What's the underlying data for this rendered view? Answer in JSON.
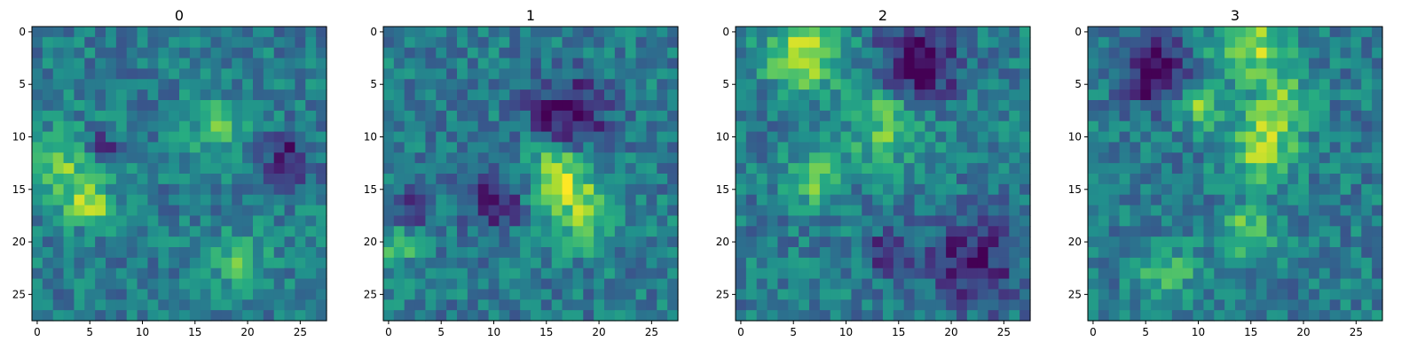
{
  "figure": {
    "panel_count": 4
  },
  "chart_data": [
    {
      "type": "heatmap",
      "title": "0",
      "colormap": "viridis",
      "grid": false,
      "rows": 28,
      "cols": 28,
      "seed": 11,
      "xticks": [
        0,
        5,
        10,
        15,
        20,
        25
      ],
      "yticks": [
        0,
        5,
        10,
        15,
        20,
        25
      ],
      "xticklabels": [
        "0",
        "5",
        "10",
        "15",
        "20",
        "25"
      ],
      "yticklabels": [
        "0",
        "5",
        "10",
        "15",
        "20",
        "25"
      ],
      "xlim": [
        -0.5,
        27.5
      ],
      "ylim": [
        27.5,
        -0.5
      ],
      "hotspots": [
        {
          "row": 13,
          "col": 3,
          "radius": 2.5,
          "amp": 0.35
        },
        {
          "row": 17,
          "col": 5,
          "radius": 1.2,
          "amp": 0.45
        },
        {
          "row": 9,
          "col": 17,
          "radius": 2.0,
          "amp": 0.25
        },
        {
          "row": 22,
          "col": 19,
          "radius": 2.0,
          "amp": 0.25
        },
        {
          "row": 12,
          "col": 24,
          "radius": 1.5,
          "amp": -0.35
        },
        {
          "row": 11,
          "col": 6,
          "radius": 1.2,
          "amp": -0.35
        }
      ]
    },
    {
      "type": "heatmap",
      "title": "1",
      "colormap": "viridis",
      "grid": false,
      "rows": 28,
      "cols": 28,
      "seed": 23,
      "xticks": [
        0,
        5,
        10,
        15,
        20,
        25
      ],
      "yticks": [
        0,
        5,
        10,
        15,
        20,
        25
      ],
      "xticklabels": [
        "0",
        "5",
        "10",
        "15",
        "20",
        "25"
      ],
      "yticklabels": [
        "0",
        "5",
        "10",
        "15",
        "20",
        "25"
      ],
      "xlim": [
        -0.5,
        27.5
      ],
      "ylim": [
        27.5,
        -0.5
      ],
      "hotspots": [
        {
          "row": 13,
          "col": 16,
          "radius": 2.0,
          "amp": 0.45
        },
        {
          "row": 17,
          "col": 18,
          "radius": 2.5,
          "amp": 0.35
        },
        {
          "row": 8,
          "col": 17,
          "radius": 2.5,
          "amp": -0.45
        },
        {
          "row": 16,
          "col": 10,
          "radius": 2.0,
          "amp": -0.35
        },
        {
          "row": 17,
          "col": 2,
          "radius": 1.2,
          "amp": -0.35
        },
        {
          "row": 20,
          "col": 1,
          "radius": 1.5,
          "amp": 0.3
        }
      ]
    },
    {
      "type": "heatmap",
      "title": "2",
      "colormap": "viridis",
      "grid": false,
      "rows": 28,
      "cols": 28,
      "seed": 37,
      "xticks": [
        0,
        5,
        10,
        15,
        20,
        25
      ],
      "yticks": [
        0,
        5,
        10,
        15,
        20,
        25
      ],
      "xticklabels": [
        "0",
        "5",
        "10",
        "15",
        "20",
        "25"
      ],
      "yticklabels": [
        "0",
        "5",
        "10",
        "15",
        "20",
        "25"
      ],
      "xlim": [
        -0.5,
        27.5
      ],
      "ylim": [
        27.5,
        -0.5
      ],
      "hotspots": [
        {
          "row": 2,
          "col": 6,
          "radius": 2.5,
          "amp": 0.5
        },
        {
          "row": 9,
          "col": 14,
          "radius": 2.5,
          "amp": 0.35
        },
        {
          "row": 14,
          "col": 7,
          "radius": 1.8,
          "amp": 0.35
        },
        {
          "row": 3,
          "col": 17,
          "radius": 2.5,
          "amp": -0.5
        },
        {
          "row": 22,
          "col": 22,
          "radius": 3.0,
          "amp": -0.35
        },
        {
          "row": 21,
          "col": 14,
          "radius": 1.5,
          "amp": -0.3
        }
      ]
    },
    {
      "type": "heatmap",
      "title": "3",
      "colormap": "viridis",
      "grid": false,
      "rows": 28,
      "cols": 28,
      "seed": 53,
      "xticks": [
        0,
        5,
        10,
        15,
        20,
        25
      ],
      "yticks": [
        0,
        5,
        10,
        15,
        20,
        25
      ],
      "xticklabels": [
        "0",
        "5",
        "10",
        "15",
        "20",
        "25"
      ],
      "yticklabels": [
        "0",
        "5",
        "10",
        "15",
        "20",
        "25"
      ],
      "xlim": [
        -0.5,
        27.5
      ],
      "ylim": [
        27.5,
        -0.5
      ],
      "hotspots": [
        {
          "row": 1,
          "col": 15,
          "radius": 2.5,
          "amp": 0.45
        },
        {
          "row": 11,
          "col": 16,
          "radius": 2.2,
          "amp": 0.45
        },
        {
          "row": 7,
          "col": 18,
          "radius": 1.8,
          "amp": 0.4
        },
        {
          "row": 7,
          "col": 10,
          "radius": 1.5,
          "amp": 0.35
        },
        {
          "row": 19,
          "col": 15,
          "radius": 1.8,
          "amp": 0.35
        },
        {
          "row": 23,
          "col": 7,
          "radius": 1.8,
          "amp": 0.3
        },
        {
          "row": 4,
          "col": 6,
          "radius": 2.2,
          "amp": -0.45
        }
      ]
    }
  ]
}
